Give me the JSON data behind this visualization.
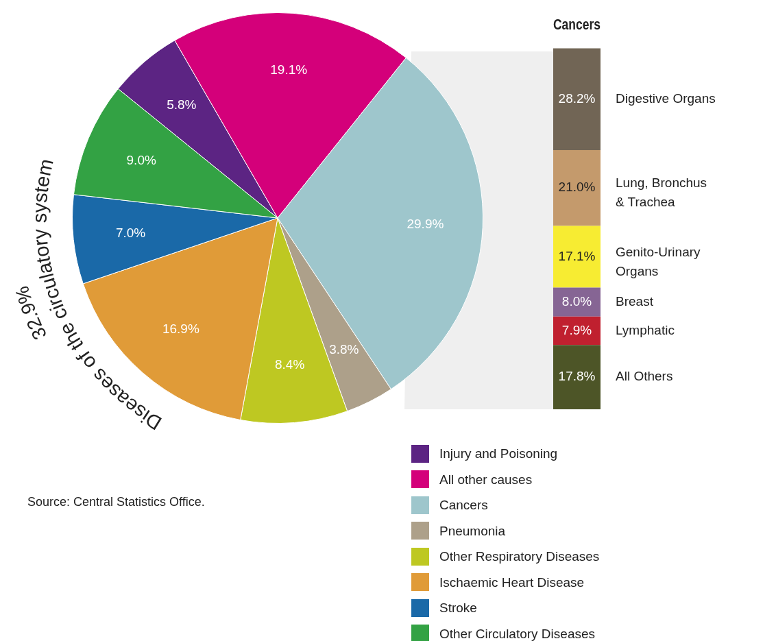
{
  "chart_data": [
    {
      "type": "pie",
      "categories": [
        "Injury and Poisoning",
        "All other causes",
        "Cancers",
        "Pneumonia",
        "Other Respiratory Diseases",
        "Ischaemic Heart Disease",
        "Stroke",
        "Other Circulatory Diseases"
      ],
      "values": [
        5.8,
        19.1,
        29.9,
        3.8,
        8.4,
        16.9,
        7.0,
        9.0
      ],
      "value_labels": [
        "5.8%",
        "19.1%",
        "29.9%",
        "3.8%",
        "8.4%",
        "16.9%",
        "7.0%",
        "9.0%"
      ],
      "colors": [
        "#5c2483",
        "#d4007a",
        "#9ec6cc",
        "#ada08a",
        "#bec822",
        "#e09b38",
        "#1a69a8",
        "#33a244"
      ],
      "legend": "bottom right",
      "annotations": [
        "32.9%",
        "Diseases of the circulatory system",
        "Source: Central Statistics Office."
      ]
    },
    {
      "type": "bar",
      "title": "Cancers",
      "stacked": true,
      "categories": [
        null
      ],
      "series": [
        {
          "name": "All Others",
          "color": "#4d5527",
          "values": [
            17.8
          ],
          "value_labels": [
            "17.8%"
          ]
        },
        {
          "name": "Lymphatic",
          "color": "#c0202f",
          "values": [
            7.9
          ],
          "value_labels": [
            "7.9%"
          ]
        },
        {
          "name": "Breast",
          "color": "#866594",
          "values": [
            8.0
          ],
          "value_labels": [
            "8.0%"
          ]
        },
        {
          "name": "Genito-Urinary Organs",
          "color": "#f7ec32",
          "values": [
            17.1
          ],
          "value_labels": [
            "17.1%"
          ]
        },
        {
          "name": "Lung, Bronchus & Trachea",
          "color": "#c49a6c",
          "values": [
            21.0
          ],
          "value_labels": [
            "21.0%"
          ]
        },
        {
          "name": "Digestive Organs",
          "color": "#716555",
          "values": [
            28.2
          ],
          "value_labels": [
            "28.2%"
          ]
        }
      ]
    }
  ]
}
